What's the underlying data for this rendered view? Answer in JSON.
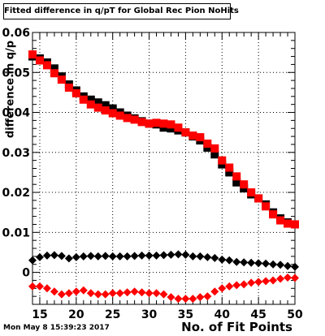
{
  "chart_data": {
    "type": "scatter",
    "title": "Fitted difference in q/pT for Global Rec Pion NoHits",
    "xlabel": "No. of Fit Points",
    "ylabel": "difference in q/p",
    "xlim": [
      14,
      50
    ],
    "ylim": [
      -0.008,
      0.06
    ],
    "x_ticks": [
      15,
      20,
      25,
      30,
      35,
      40,
      45,
      50
    ],
    "y_ticks": [
      0,
      0.01,
      0.02,
      0.03,
      0.04,
      0.05,
      0.06
    ],
    "y_tick_labels": [
      "0",
      "0.01",
      "0.02",
      "0.03",
      "0.04",
      "0.05",
      "0.06"
    ],
    "grid": true,
    "series": [
      {
        "color": "#000000",
        "marker": "square",
        "x": [
          14,
          15,
          16,
          17,
          18,
          19,
          20,
          21,
          22,
          23,
          24,
          25,
          26,
          27,
          28,
          29,
          30,
          31,
          32,
          33,
          34,
          35,
          36,
          37,
          38,
          39,
          40,
          41,
          42,
          43,
          44,
          45,
          46,
          47,
          48,
          49,
          50
        ],
        "y": [
          0.054,
          0.0535,
          0.0525,
          0.051,
          0.049,
          0.047,
          0.0455,
          0.044,
          0.0432,
          0.0425,
          0.0418,
          0.041,
          0.04,
          0.0392,
          0.0385,
          0.0378,
          0.0372,
          0.037,
          0.0362,
          0.036,
          0.0355,
          0.035,
          0.034,
          0.033,
          0.0312,
          0.0295,
          0.027,
          0.025,
          0.0225,
          0.021,
          0.0195,
          0.0185,
          0.017,
          0.015,
          0.0135,
          0.0125,
          0.012
        ]
      },
      {
        "color": "#ff0000",
        "marker": "square",
        "x": [
          14,
          15,
          16,
          17,
          18,
          19,
          20,
          21,
          22,
          23,
          24,
          25,
          26,
          27,
          28,
          29,
          30,
          31,
          32,
          33,
          34,
          35,
          36,
          37,
          38,
          39,
          40,
          41,
          42,
          43,
          44,
          45,
          46,
          47,
          48,
          49,
          50
        ],
        "y": [
          0.0545,
          0.053,
          0.0518,
          0.0498,
          0.0482,
          0.0462,
          0.0448,
          0.0432,
          0.042,
          0.0412,
          0.0405,
          0.0398,
          0.0392,
          0.0386,
          0.0382,
          0.0376,
          0.0372,
          0.0374,
          0.0372,
          0.037,
          0.0362,
          0.035,
          0.0342,
          0.0338,
          0.0322,
          0.031,
          0.028,
          0.0262,
          0.024,
          0.022,
          0.02,
          0.0185,
          0.0165,
          0.0145,
          0.013,
          0.0122,
          0.012
        ]
      },
      {
        "color": "#000000",
        "marker": "diamond",
        "x": [
          14,
          15,
          16,
          17,
          18,
          19,
          20,
          21,
          22,
          23,
          24,
          25,
          26,
          27,
          28,
          29,
          30,
          31,
          32,
          33,
          34,
          35,
          36,
          37,
          38,
          39,
          40,
          41,
          42,
          43,
          44,
          45,
          46,
          47,
          48,
          49,
          50
        ],
        "y": [
          0.003,
          0.0038,
          0.0042,
          0.0043,
          0.0041,
          0.0035,
          0.0038,
          0.004,
          0.0041,
          0.004,
          0.0041,
          0.004,
          0.004,
          0.004,
          0.0041,
          0.0042,
          0.0042,
          0.0042,
          0.0043,
          0.0044,
          0.0045,
          0.0044,
          0.004,
          0.004,
          0.0038,
          0.0036,
          0.0032,
          0.003,
          0.0026,
          0.0025,
          0.0024,
          0.0023,
          0.0022,
          0.002,
          0.0019,
          0.0016,
          0.0014
        ]
      },
      {
        "color": "#ff0000",
        "marker": "diamond",
        "x": [
          14,
          15,
          16,
          17,
          18,
          19,
          20,
          21,
          22,
          23,
          24,
          25,
          26,
          27,
          28,
          29,
          30,
          31,
          32,
          33,
          34,
          35,
          36,
          37,
          38,
          39,
          40,
          41,
          42,
          43,
          44,
          45,
          46,
          47,
          48,
          49,
          50
        ],
        "y": [
          -0.0035,
          -0.0035,
          -0.004,
          -0.0048,
          -0.0055,
          -0.0052,
          -0.0048,
          -0.0045,
          -0.0052,
          -0.0055,
          -0.0055,
          -0.0052,
          -0.0052,
          -0.005,
          -0.0048,
          -0.005,
          -0.0052,
          -0.0052,
          -0.0055,
          -0.0062,
          -0.0066,
          -0.0066,
          -0.0066,
          -0.0062,
          -0.006,
          -0.0048,
          -0.004,
          -0.0035,
          -0.0032,
          -0.003,
          -0.0026,
          -0.0024,
          -0.0022,
          -0.002,
          -0.0016,
          -0.0013,
          -0.0014
        ]
      }
    ]
  },
  "datestamp": "Mon May  8 15:39:23 2017"
}
